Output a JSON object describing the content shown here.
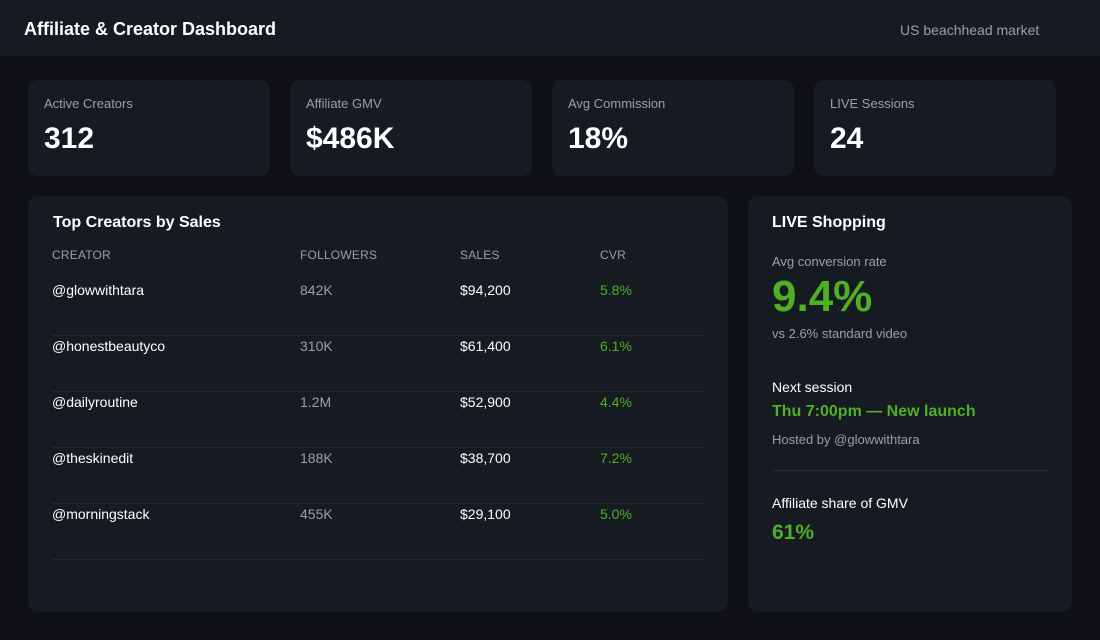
{
  "header": {
    "title": "Affiliate & Creator Dashboard",
    "market": "US beachhead market"
  },
  "kpis": [
    {
      "label": "Active Creators",
      "value": "312"
    },
    {
      "label": "Affiliate GMV",
      "value": "$486K"
    },
    {
      "label": "Avg Commission",
      "value": "18%"
    },
    {
      "label": "LIVE Sessions",
      "value": "24"
    }
  ],
  "top_creators": {
    "title": "Top Creators by Sales",
    "columns": [
      "CREATOR",
      "FOLLOWERS",
      "SALES",
      "CVR"
    ],
    "rows": [
      {
        "creator": "@glowwithtara",
        "followers": "842K",
        "sales": "$94,200",
        "cvr": "5.8%"
      },
      {
        "creator": "@honestbeautyco",
        "followers": "310K",
        "sales": "$61,400",
        "cvr": "6.1%"
      },
      {
        "creator": "@dailyroutine",
        "followers": "1.2M",
        "sales": "$52,900",
        "cvr": "4.4%"
      },
      {
        "creator": "@theskinedit",
        "followers": "188K",
        "sales": "$38,700",
        "cvr": "7.2%"
      },
      {
        "creator": "@morningstack",
        "followers": "455K",
        "sales": "$29,100",
        "cvr": "5.0%"
      }
    ]
  },
  "live": {
    "title": "LIVE Shopping",
    "conv_label": "Avg conversion rate",
    "conv_value": "9.4%",
    "conv_compare": "vs 2.6% standard video",
    "next_label": "Next session",
    "next_value": "Thu 7:00pm — New launch",
    "next_host": "Hosted by @glowwithtara",
    "share_label": "Affiliate share of GMV",
    "share_value": "61%"
  },
  "colors": {
    "accent_green": "#4fb024",
    "background": "#0e1014",
    "card": "#161a21"
  }
}
